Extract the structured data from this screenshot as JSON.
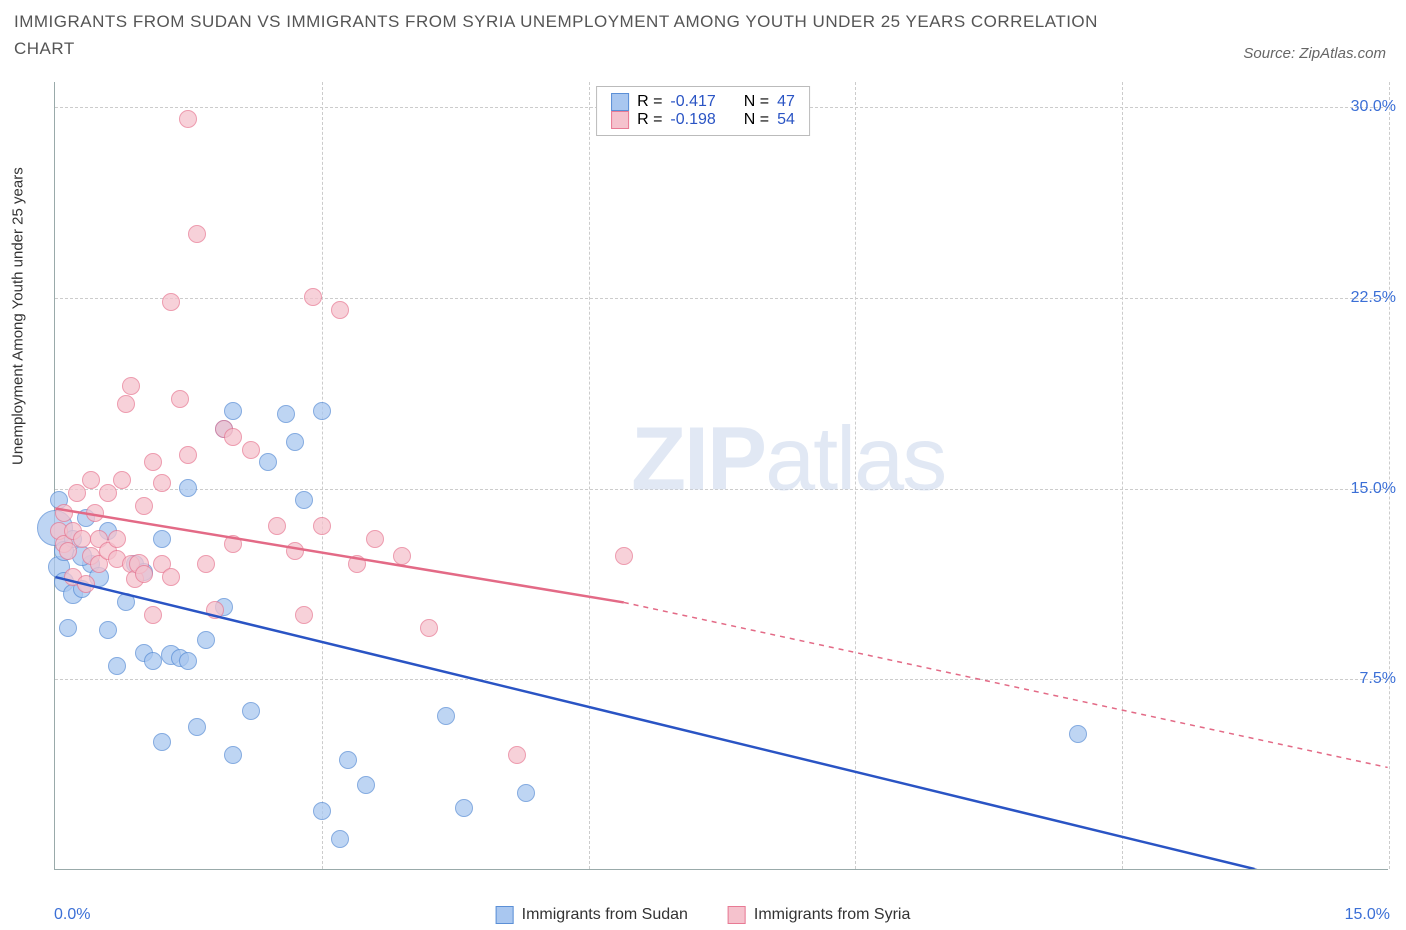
{
  "title": "IMMIGRANTS FROM SUDAN VS IMMIGRANTS FROM SYRIA UNEMPLOYMENT AMONG YOUTH UNDER 25 YEARS CORRELATION CHART",
  "source_prefix": "Source: ",
  "source_name": "ZipAtlas.com",
  "y_axis_label": "Unemployment Among Youth under 25 years",
  "watermark_bold": "ZIP",
  "watermark_thin": "atlas",
  "chart": {
    "type": "scatter",
    "background_color": "#ffffff",
    "grid_color": "#cccccc",
    "axis_color": "#99aaaa",
    "x_range": [
      0,
      15
    ],
    "y_range": [
      0,
      31
    ],
    "y_ticks": [
      7.5,
      15.0,
      22.5,
      30.0
    ],
    "y_tick_labels": [
      "7.5%",
      "15.0%",
      "22.5%",
      "30.0%"
    ],
    "x_ticks": [
      0,
      3,
      6,
      9,
      12,
      15
    ],
    "x_origin_label": "0.0%",
    "x_max_label": "15.0%",
    "series": [
      {
        "key": "sudan",
        "name": "Immigrants from Sudan",
        "fill": "#a9c7f0",
        "stroke": "#5b8fd6",
        "line_color": "#2a54c4",
        "marker_radius": 9,
        "R": "-0.417",
        "N": "47",
        "trend": {
          "x1": 0.0,
          "y1": 11.5,
          "x2": 13.5,
          "y2": 0.0,
          "dash_x1": 13.5,
          "dash_y1": 0.0,
          "dash_x2": 15.0,
          "dash_y2": -1.3
        },
        "points": [
          [
            0.0,
            13.4,
            18
          ],
          [
            0.05,
            11.9,
            11
          ],
          [
            0.1,
            12.5,
            10
          ],
          [
            0.1,
            11.3,
            10
          ],
          [
            0.2,
            10.8,
            10
          ],
          [
            0.2,
            13.0,
            9
          ],
          [
            0.15,
            9.5,
            9
          ],
          [
            0.05,
            14.5,
            9
          ],
          [
            0.3,
            11.0,
            9
          ],
          [
            0.4,
            12.0,
            9
          ],
          [
            0.35,
            13.8,
            9
          ],
          [
            0.3,
            12.3,
            10
          ],
          [
            0.5,
            11.5,
            10
          ],
          [
            0.6,
            9.4,
            9
          ],
          [
            0.7,
            8.0,
            9
          ],
          [
            0.8,
            10.5,
            9
          ],
          [
            0.6,
            13.3,
            9
          ],
          [
            0.9,
            12.0,
            9
          ],
          [
            1.0,
            8.5,
            9
          ],
          [
            1.0,
            11.7,
            9
          ],
          [
            1.1,
            8.2,
            9
          ],
          [
            1.2,
            13.0,
            9
          ],
          [
            1.2,
            5.0,
            9
          ],
          [
            1.3,
            8.4,
            10
          ],
          [
            1.4,
            8.3,
            9
          ],
          [
            1.5,
            8.2,
            9
          ],
          [
            1.5,
            15.0,
            9
          ],
          [
            1.6,
            5.6,
            9
          ],
          [
            1.7,
            9.0,
            9
          ],
          [
            1.9,
            10.3,
            9
          ],
          [
            1.9,
            17.3,
            9
          ],
          [
            2.0,
            18.0,
            9
          ],
          [
            2.0,
            4.5,
            9
          ],
          [
            2.2,
            6.2,
            9
          ],
          [
            2.4,
            16.0,
            9
          ],
          [
            2.6,
            17.9,
            9
          ],
          [
            2.7,
            16.8,
            9
          ],
          [
            2.8,
            14.5,
            9
          ],
          [
            3.0,
            18.0,
            9
          ],
          [
            3.0,
            2.3,
            9
          ],
          [
            3.2,
            1.2,
            9
          ],
          [
            3.3,
            4.3,
            9
          ],
          [
            3.5,
            3.3,
            9
          ],
          [
            4.4,
            6.0,
            9
          ],
          [
            4.6,
            2.4,
            9
          ],
          [
            5.3,
            3.0,
            9
          ],
          [
            11.5,
            5.3,
            9
          ]
        ]
      },
      {
        "key": "syria",
        "name": "Immigrants from Syria",
        "fill": "#f5c2cd",
        "stroke": "#e87a94",
        "line_color": "#e36a86",
        "marker_radius": 9,
        "R": "-0.198",
        "N": "54",
        "trend": {
          "x1": 0.0,
          "y1": 14.2,
          "x2": 6.4,
          "y2": 10.5,
          "dash_x1": 6.4,
          "dash_y1": 10.5,
          "dash_x2": 15.0,
          "dash_y2": 4.0
        },
        "points": [
          [
            0.05,
            13.3,
            9
          ],
          [
            0.1,
            12.8,
            9
          ],
          [
            0.1,
            14.0,
            9
          ],
          [
            0.15,
            12.5,
            9
          ],
          [
            0.2,
            13.3,
            9
          ],
          [
            0.2,
            11.5,
            9
          ],
          [
            0.25,
            14.8,
            9
          ],
          [
            0.3,
            13.0,
            9
          ],
          [
            0.35,
            11.2,
            9
          ],
          [
            0.4,
            12.3,
            9
          ],
          [
            0.4,
            15.3,
            9
          ],
          [
            0.45,
            14.0,
            9
          ],
          [
            0.5,
            12.0,
            9
          ],
          [
            0.5,
            13.0,
            9
          ],
          [
            0.6,
            12.5,
            9
          ],
          [
            0.6,
            14.8,
            9
          ],
          [
            0.7,
            13.0,
            9
          ],
          [
            0.7,
            12.2,
            9
          ],
          [
            0.75,
            15.3,
            9
          ],
          [
            0.8,
            18.3,
            9
          ],
          [
            0.85,
            12.0,
            9
          ],
          [
            0.85,
            19.0,
            9
          ],
          [
            0.9,
            11.4,
            9
          ],
          [
            0.95,
            12.0,
            10
          ],
          [
            1.0,
            14.3,
            9
          ],
          [
            1.0,
            11.6,
            9
          ],
          [
            1.1,
            10.0,
            9
          ],
          [
            1.1,
            16.0,
            9
          ],
          [
            1.2,
            15.2,
            9
          ],
          [
            1.2,
            12.0,
            9
          ],
          [
            1.3,
            22.3,
            9
          ],
          [
            1.3,
            11.5,
            9
          ],
          [
            1.4,
            18.5,
            9
          ],
          [
            1.5,
            29.5,
            9
          ],
          [
            1.5,
            16.3,
            9
          ],
          [
            1.6,
            25.0,
            9
          ],
          [
            1.7,
            12.0,
            9
          ],
          [
            1.8,
            10.2,
            9
          ],
          [
            1.9,
            17.3,
            9
          ],
          [
            2.0,
            12.8,
            9
          ],
          [
            2.0,
            17.0,
            9
          ],
          [
            2.2,
            16.5,
            9
          ],
          [
            2.5,
            13.5,
            9
          ],
          [
            2.7,
            12.5,
            9
          ],
          [
            2.8,
            10.0,
            9
          ],
          [
            2.9,
            22.5,
            9
          ],
          [
            3.0,
            13.5,
            9
          ],
          [
            3.2,
            22.0,
            9
          ],
          [
            3.4,
            12.0,
            9
          ],
          [
            3.6,
            13.0,
            9
          ],
          [
            3.9,
            12.3,
            9
          ],
          [
            4.2,
            9.5,
            9
          ],
          [
            5.2,
            4.5,
            9
          ],
          [
            6.4,
            12.3,
            9
          ]
        ]
      }
    ]
  },
  "legend_stats": {
    "r_label": "R =",
    "n_label": "N ="
  }
}
